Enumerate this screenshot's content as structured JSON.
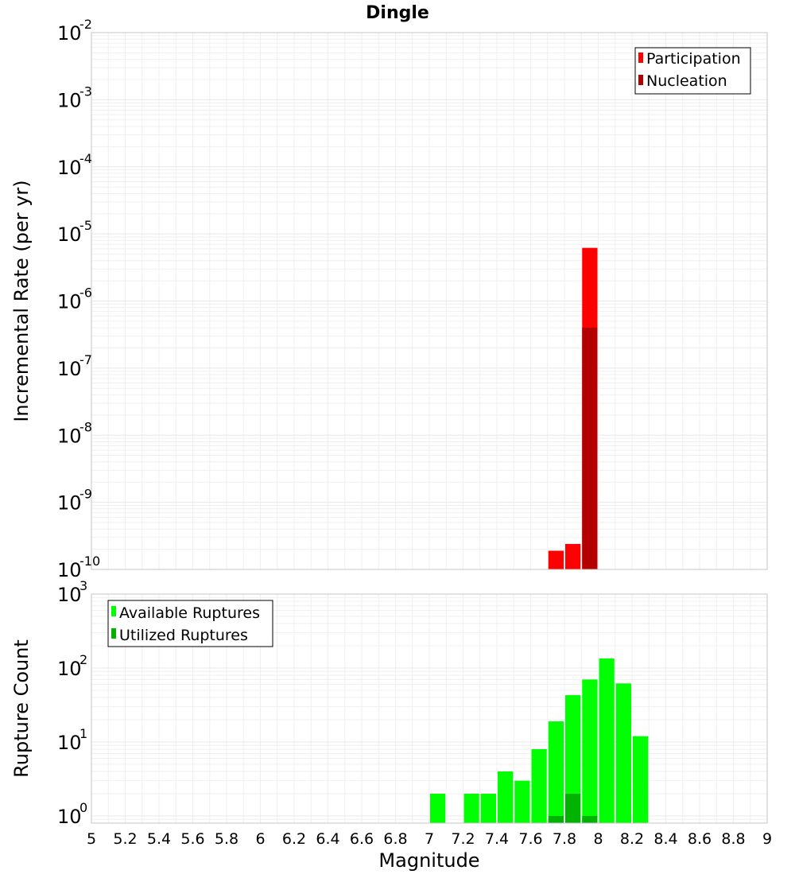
{
  "chart_data": [
    {
      "type": "bar",
      "title": "Dingle",
      "xlabel": "",
      "ylabel": "Incremental Rate (per yr)",
      "yscale": "log",
      "ylim": [
        1e-10,
        0.01
      ],
      "xlim": [
        5,
        9
      ],
      "y_ticks": [
        {
          "base": "10",
          "exp": "-10",
          "value": 1e-10
        },
        {
          "base": "10",
          "exp": "-9",
          "value": 1e-09
        },
        {
          "base": "10",
          "exp": "-8",
          "value": 1e-08
        },
        {
          "base": "10",
          "exp": "-7",
          "value": 1e-07
        },
        {
          "base": "10",
          "exp": "-6",
          "value": 1e-06
        },
        {
          "base": "10",
          "exp": "-5",
          "value": 1e-05
        },
        {
          "base": "10",
          "exp": "-4",
          "value": 0.0001
        },
        {
          "base": "10",
          "exp": "-3",
          "value": 0.001
        },
        {
          "base": "10",
          "exp": "-2",
          "value": 0.01
        }
      ],
      "grid": true,
      "legend_position": "top-right",
      "series": [
        {
          "name": "Participation",
          "color": "#ff0000",
          "x": [
            7.75,
            7.85,
            7.95
          ],
          "values": [
            1.9e-10,
            2.4e-10,
            6.2e-06
          ]
        },
        {
          "name": "Nucleation",
          "color": "#b30000",
          "x": [
            7.95
          ],
          "values": [
            4e-07
          ]
        }
      ]
    },
    {
      "type": "bar",
      "title": "",
      "xlabel": "Magnitude",
      "ylabel": "Rupture Count",
      "yscale": "log",
      "ylim": [
        0.8,
        1000
      ],
      "xlim": [
        5,
        9
      ],
      "y_ticks": [
        {
          "base": "10",
          "exp": "0",
          "value": 1
        },
        {
          "base": "10",
          "exp": "1",
          "value": 10
        },
        {
          "base": "10",
          "exp": "2",
          "value": 100
        },
        {
          "base": "10",
          "exp": "3",
          "value": 1000
        }
      ],
      "x_ticks": [
        "5",
        "5.2",
        "5.4",
        "5.6",
        "5.8",
        "6",
        "6.2",
        "6.4",
        "6.6",
        "6.8",
        "7",
        "7.2",
        "7.4",
        "7.6",
        "7.8",
        "8",
        "8.2",
        "8.4",
        "8.6",
        "8.8",
        "9"
      ],
      "grid": true,
      "legend_position": "top-left",
      "series": [
        {
          "name": "Available Ruptures",
          "color": "#00ff00",
          "x": [
            7.05,
            7.25,
            7.35,
            7.45,
            7.55,
            7.65,
            7.75,
            7.85,
            7.95,
            8.05,
            8.15,
            8.25
          ],
          "values": [
            2,
            2,
            2,
            4,
            3,
            8,
            19,
            43,
            70,
            135,
            62,
            12
          ]
        },
        {
          "name": "Utilized Ruptures",
          "color": "#00b300",
          "x": [
            7.75,
            7.85,
            7.95
          ],
          "values": [
            1,
            2,
            1
          ]
        }
      ]
    }
  ]
}
